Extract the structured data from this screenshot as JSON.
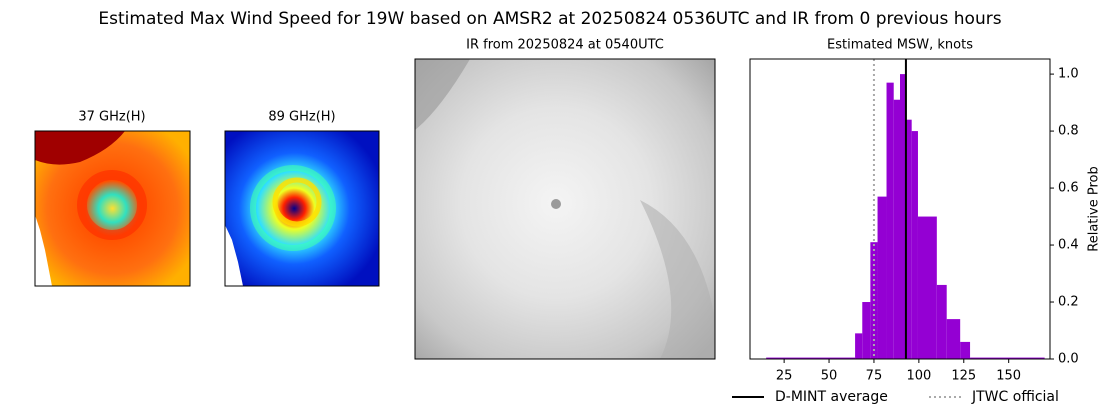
{
  "title": "Estimated Max Wind Speed for 19W based on AMSR2 at 20250824 0536UTC and IR from 0 previous hours",
  "panels": [
    {
      "title": "37 GHz(H)"
    },
    {
      "title": "89 GHz(H)"
    },
    {
      "title": "IR from 20250824 at 0540UTC"
    }
  ],
  "chart_data": {
    "type": "histogram",
    "title": "Estimated MSW, knots",
    "y_label": "Relative Prob",
    "bins": [
      15,
      64.5,
      68.5,
      73,
      77,
      82,
      86,
      89.5,
      93,
      96,
      99.5,
      110,
      115.5,
      123,
      128.5,
      170
    ],
    "counts": [
      0.005,
      0.09,
      0.2,
      0.41,
      0.57,
      0.97,
      0.91,
      1.0,
      0.84,
      0.8,
      0.5,
      0.26,
      0.14,
      0.06,
      0.005
    ],
    "color": "#9400d3",
    "xlim": [
      6,
      173
    ],
    "xticks": [
      25,
      50,
      75,
      100,
      125,
      150
    ],
    "ylim": [
      0,
      1.053
    ],
    "yticks": [
      {
        "value": 0,
        "label": "0.0"
      },
      0.2,
      0.4,
      0.6,
      0.8,
      {
        "value": 1,
        "label": "1.0"
      }
    ],
    "reference_lines": [
      {
        "name": "D-MINT average",
        "value": 92.8,
        "color": "#000000",
        "style": "solid"
      },
      {
        "name": "JTWC official",
        "value": 75,
        "color": "#aaaaaa",
        "style": "dotted"
      }
    ],
    "legend": "bottom"
  }
}
